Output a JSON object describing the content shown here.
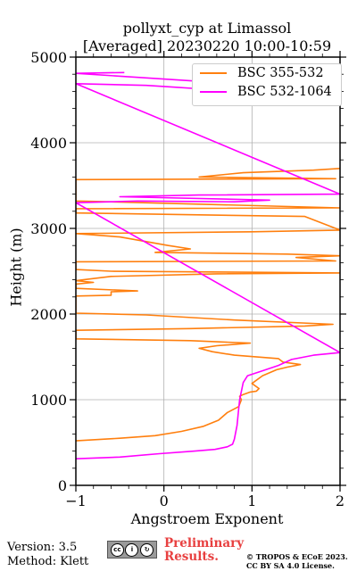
{
  "title": {
    "line1": "pollyxt_cyp at Limassol",
    "line2": "[Averaged] 20230220 10:00-10:59"
  },
  "footer": {
    "version": "Version: 3.5",
    "method": "Method: Klett",
    "preliminary_line1": "Preliminary",
    "preliminary_line2": "Results.",
    "copyright_line1": "© TROPOS & ECoE 2023.",
    "copyright_line2": "CC BY SA 4.0 License.",
    "license_icon": "cc-by-sa-icon"
  },
  "chart_data": {
    "type": "line",
    "title": "pollyxt_cyp at Limassol\n[Averaged] 20230220 10:00-10:59",
    "xlabel": "Angstroem Exponent",
    "ylabel": "Height (m)",
    "xlim": [
      -1,
      2
    ],
    "ylim": [
      0,
      5000
    ],
    "xticks": [
      "−1",
      "0",
      "1",
      "2"
    ],
    "yticks": [
      "0",
      "1000",
      "2000",
      "3000",
      "4000",
      "5000"
    ],
    "grid": true,
    "legend_position": "top-right",
    "series": [
      {
        "name": "BSC 355-532",
        "color": "#ff7f0e",
        "points": [
          [
            -1.0,
            520
          ],
          [
            -0.5,
            550
          ],
          [
            -0.1,
            580
          ],
          [
            0.2,
            630
          ],
          [
            0.45,
            690
          ],
          [
            0.62,
            760
          ],
          [
            0.72,
            850
          ],
          [
            0.85,
            920
          ],
          [
            0.88,
            1000
          ],
          [
            0.86,
            1040
          ],
          [
            0.9,
            1060
          ],
          [
            0.98,
            1090
          ],
          [
            1.05,
            1100
          ],
          [
            1.08,
            1130
          ],
          [
            1.0,
            1190
          ],
          [
            1.12,
            1280
          ],
          [
            1.28,
            1350
          ],
          [
            1.4,
            1380
          ],
          [
            1.55,
            1410
          ],
          [
            1.35,
            1440
          ],
          [
            1.3,
            1480
          ],
          [
            0.8,
            1520
          ],
          [
            0.55,
            1560
          ],
          [
            0.4,
            1600
          ],
          [
            0.6,
            1630
          ],
          [
            0.98,
            1660
          ],
          [
            0.3,
            1690
          ],
          [
            -1.0,
            1710
          ],
          [
            -1.0,
            1730
          ],
          [
            -1.0,
            1810
          ],
          [
            0.3,
            1830
          ],
          [
            1.6,
            1860
          ],
          [
            1.92,
            1880
          ],
          [
            0.8,
            1930
          ],
          [
            -0.2,
            1990
          ],
          [
            -1.0,
            2010
          ],
          [
            -1.0,
            2060
          ],
          [
            -1.0,
            2210
          ],
          [
            -0.6,
            2220
          ],
          [
            -0.6,
            2260
          ],
          [
            -0.3,
            2270
          ],
          [
            -1.0,
            2300
          ],
          [
            -1.0,
            2350
          ],
          [
            -0.8,
            2370
          ],
          [
            -1.0,
            2390
          ],
          [
            -0.6,
            2440
          ],
          [
            0.6,
            2470
          ],
          [
            2.0,
            2480
          ],
          [
            -0.6,
            2500
          ],
          [
            -1.0,
            2520
          ],
          [
            -1.0,
            2610
          ],
          [
            1.95,
            2620
          ],
          [
            1.5,
            2660
          ],
          [
            2.0,
            2680
          ],
          [
            1.4,
            2700
          ],
          [
            -0.1,
            2720
          ],
          [
            0.3,
            2760
          ],
          [
            0.05,
            2800
          ],
          [
            -0.5,
            2900
          ],
          [
            -1.0,
            2940
          ],
          [
            1.0,
            2960
          ],
          [
            2.0,
            2980
          ],
          [
            1.6,
            3140
          ],
          [
            -1.0,
            3180
          ],
          [
            -1.0,
            3230
          ],
          [
            2.0,
            3240
          ],
          [
            -0.6,
            3310
          ],
          [
            -1.0,
            3320
          ],
          [
            -1.0,
            3570
          ],
          [
            1.95,
            3580
          ],
          [
            0.4,
            3600
          ],
          [
            0.7,
            3630
          ],
          [
            0.9,
            3650
          ],
          [
            1.7,
            3680
          ],
          [
            2.0,
            3700
          ]
        ]
      },
      {
        "name": "BSC 532-1064",
        "color": "#ff00ff",
        "points": [
          [
            -1.0,
            310
          ],
          [
            -0.5,
            330
          ],
          [
            -0.05,
            370
          ],
          [
            0.35,
            400
          ],
          [
            0.58,
            420
          ],
          [
            0.72,
            450
          ],
          [
            0.78,
            480
          ],
          [
            0.8,
            540
          ],
          [
            0.83,
            700
          ],
          [
            0.85,
            900
          ],
          [
            0.86,
            1000
          ],
          [
            0.88,
            1100
          ],
          [
            0.9,
            1200
          ],
          [
            0.95,
            1280
          ],
          [
            1.1,
            1330
          ],
          [
            1.3,
            1400
          ],
          [
            1.45,
            1470
          ],
          [
            1.7,
            1520
          ],
          [
            2.0,
            1550
          ],
          [
            -1.0,
            3300
          ],
          [
            -0.3,
            3320
          ],
          [
            0.8,
            3310
          ],
          [
            1.2,
            3330
          ],
          [
            -0.5,
            3370
          ],
          [
            0.4,
            3390
          ],
          [
            2.0,
            3400
          ],
          [
            -1.0,
            4690
          ],
          [
            -0.2,
            4670
          ],
          [
            0.1,
            4650
          ],
          [
            0.4,
            4630
          ],
          [
            0.8,
            4610
          ],
          [
            1.6,
            4600
          ],
          [
            2.0,
            4610
          ],
          [
            -1.0,
            4810
          ],
          [
            -0.45,
            4820
          ]
        ]
      }
    ]
  }
}
